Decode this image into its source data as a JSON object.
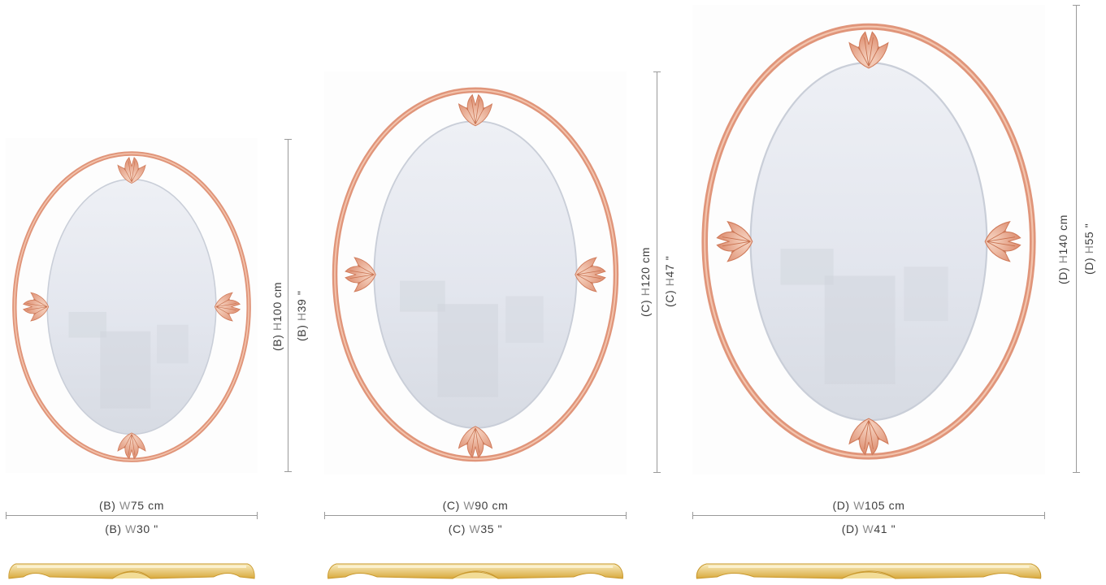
{
  "colors": {
    "frame": "#e0957a",
    "frame_light": "#f4c9b4",
    "glass": "#e6e9f0",
    "glass_shadow": "#c9ced8",
    "gold": "#e6bf5a",
    "gold_light": "#f6e6ad",
    "dimension_line": "#9a9a9a",
    "text": "#3d3d3d"
  },
  "mirrors": [
    {
      "id": "B",
      "width": {
        "prefix": "(B) ",
        "letter": "W",
        "value": "75 cm"
      },
      "width_in": {
        "prefix": "(B) ",
        "letter": "W",
        "value": "30 \""
      },
      "height": {
        "prefix": "(B) ",
        "letter": "H",
        "value": "100 cm"
      },
      "height_in": {
        "prefix": "(B) ",
        "letter": "H",
        "value": "39 \""
      }
    },
    {
      "id": "C",
      "width": {
        "prefix": "(C) ",
        "letter": "W",
        "value": "90 cm"
      },
      "width_in": {
        "prefix": "(C) ",
        "letter": "W",
        "value": "35 \""
      },
      "height": {
        "prefix": "(C) ",
        "letter": "H",
        "value": "120 cm"
      },
      "height_in": {
        "prefix": "(C) ",
        "letter": "H",
        "value": "47 \""
      }
    },
    {
      "id": "D",
      "width": {
        "prefix": "(D) ",
        "letter": "W",
        "value": "105 cm"
      },
      "width_in": {
        "prefix": "(D) ",
        "letter": "W",
        "value": "41 \""
      },
      "height": {
        "prefix": "(D) ",
        "letter": "H",
        "value": "140 cm"
      },
      "height_in": {
        "prefix": "(D) ",
        "letter": "H",
        "value": "55 \""
      }
    }
  ]
}
